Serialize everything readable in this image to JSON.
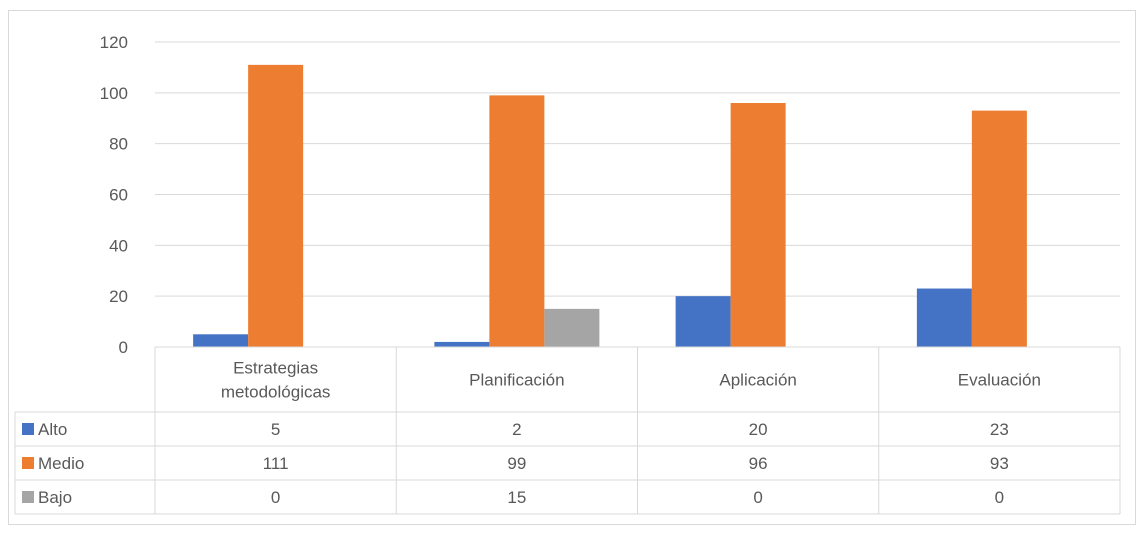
{
  "chart_data": {
    "type": "bar",
    "categories": [
      [
        "Estrategias",
        "metodológicas"
      ],
      [
        "Planificación"
      ],
      [
        "Aplicación"
      ],
      [
        "Evaluación"
      ]
    ],
    "series": [
      {
        "name": "Alto",
        "values": [
          5,
          2,
          20,
          23
        ],
        "color": "#4472c4"
      },
      {
        "name": "Medio",
        "values": [
          111,
          99,
          96,
          93
        ],
        "color": "#ed7d31"
      },
      {
        "name": "Bajo",
        "values": [
          0,
          15,
          0,
          0
        ],
        "color": "#a5a5a5"
      }
    ],
    "ylim": [
      0,
      120
    ],
    "yticks": [
      0,
      20,
      40,
      60,
      80,
      100,
      120
    ],
    "grid": true,
    "legend": "data-table"
  }
}
